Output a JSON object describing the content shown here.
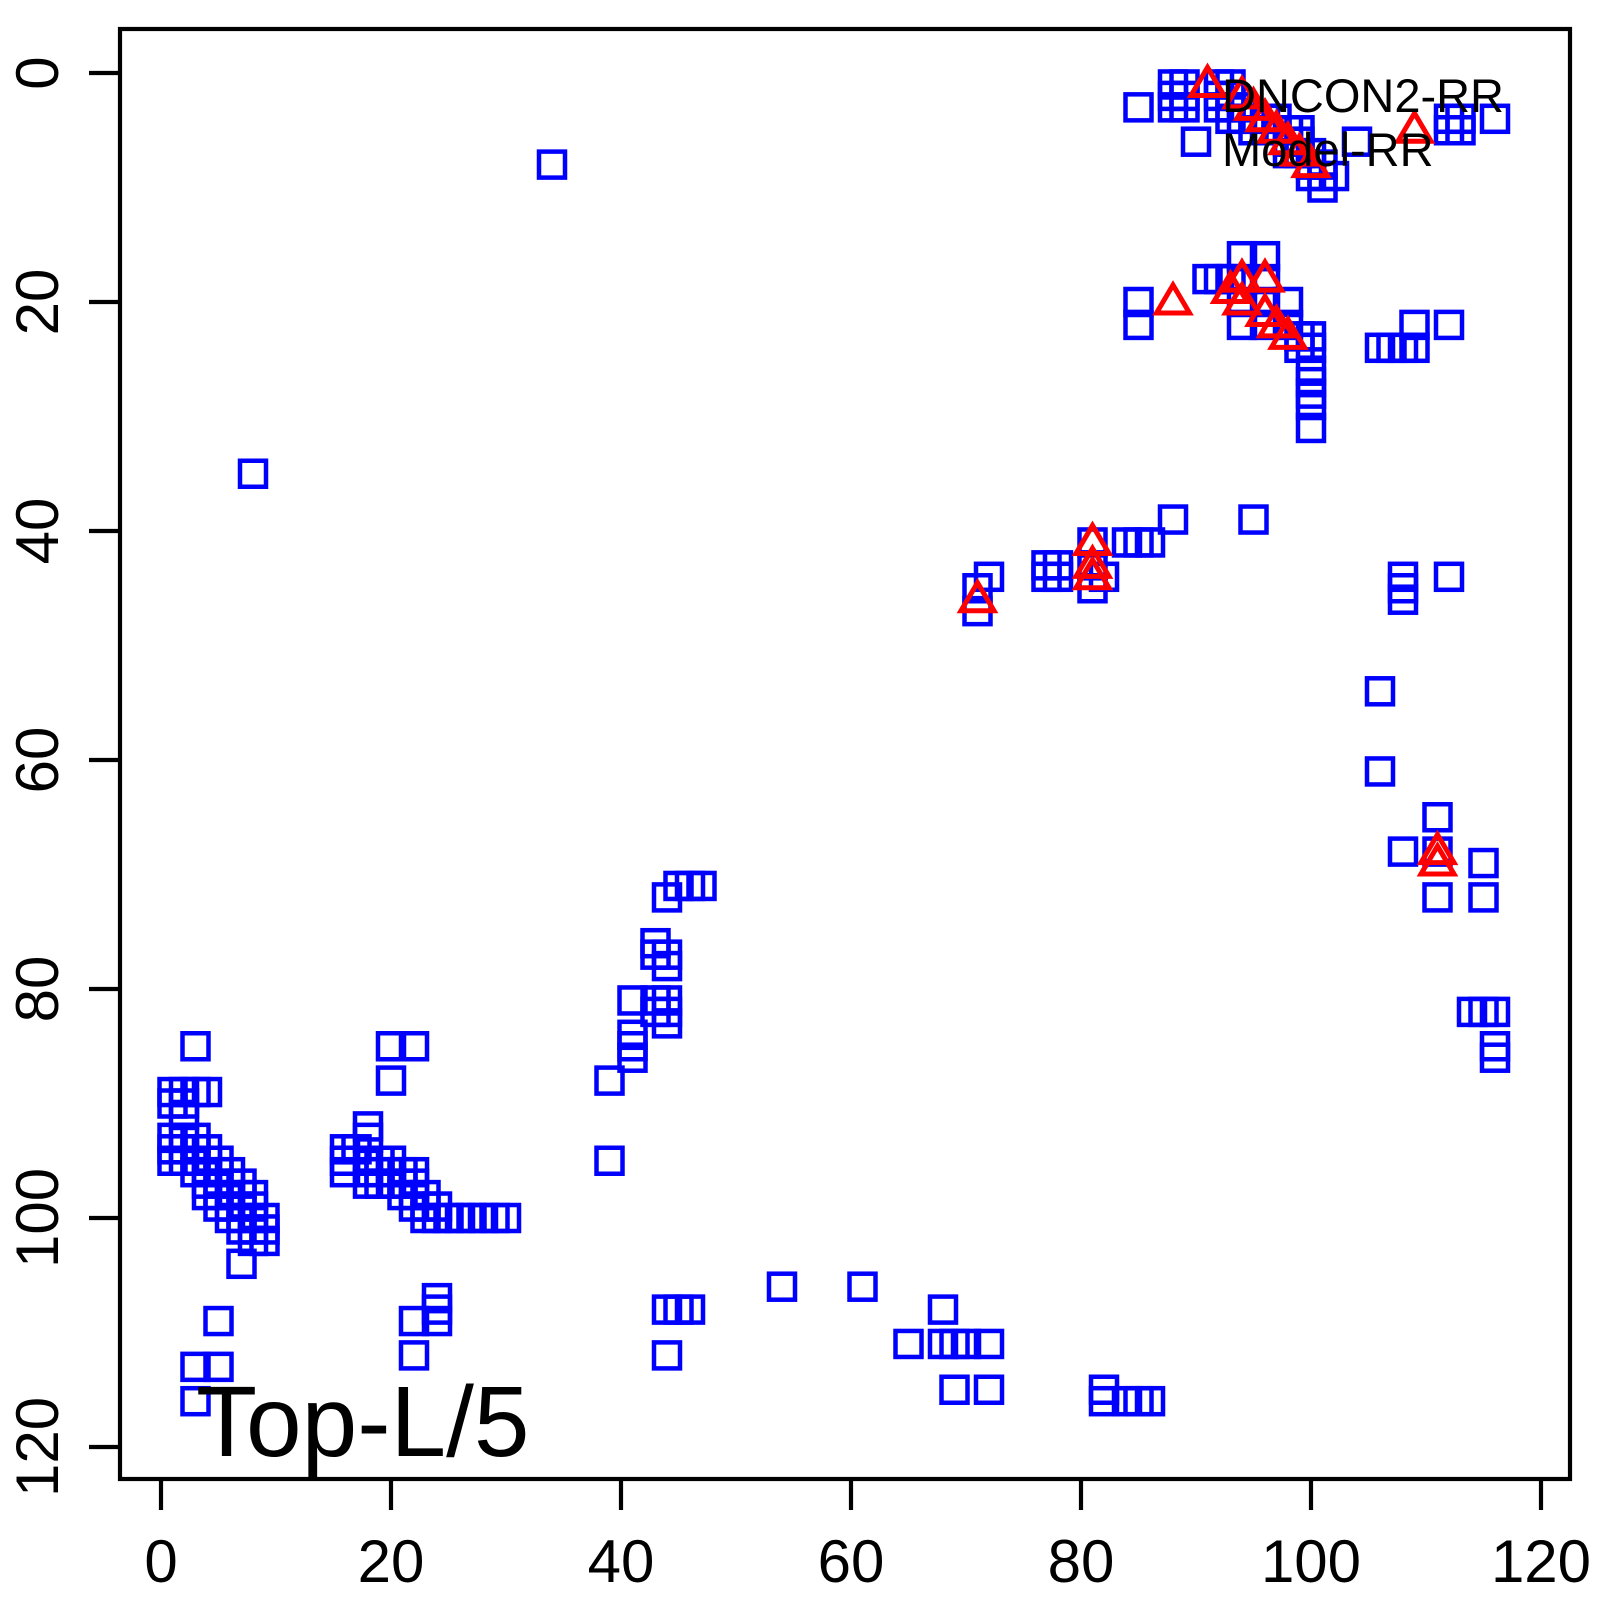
{
  "chart_data": {
    "type": "scatter",
    "title": "",
    "corner_label": "Top-L/5",
    "xlim": [
      -4,
      123
    ],
    "ylim_reversed": [
      123,
      -4
    ],
    "x_ticks": [
      0,
      20,
      40,
      60,
      80,
      100,
      120
    ],
    "y_ticks": [
      0,
      20,
      40,
      60,
      80,
      100,
      120
    ],
    "grid": false,
    "y_axis_inverted": true,
    "legend": {
      "position": "topright",
      "entries": [
        "DNCON2-RR",
        "Model-RR"
      ]
    },
    "colors": {
      "triangle_series": "#ff0000",
      "square_series": "#0000ff",
      "axis": "#000000"
    },
    "series": [
      {
        "name": "DNCON2-RR",
        "marker": "triangle",
        "color": "#ff0000",
        "points": [
          [
            91,
            1
          ],
          [
            94,
            2
          ],
          [
            95,
            3
          ],
          [
            96,
            4
          ],
          [
            97,
            5
          ],
          [
            98,
            6
          ],
          [
            99,
            7
          ],
          [
            100,
            8
          ],
          [
            109,
            5
          ],
          [
            88,
            20
          ],
          [
            94,
            18
          ],
          [
            96,
            18
          ],
          [
            93,
            19
          ],
          [
            94,
            20
          ],
          [
            96,
            21
          ],
          [
            97,
            22
          ],
          [
            98,
            23
          ],
          [
            81,
            41
          ],
          [
            81,
            43
          ],
          [
            81,
            44
          ],
          [
            71,
            46
          ],
          [
            111,
            68
          ],
          [
            111,
            69
          ]
        ]
      },
      {
        "name": "Model-RR",
        "marker": "square",
        "color": "#0000ff",
        "points": [
          [
            85,
            3
          ],
          [
            88,
            1
          ],
          [
            89,
            1
          ],
          [
            88,
            2
          ],
          [
            89,
            2
          ],
          [
            88,
            3
          ],
          [
            89,
            3
          ],
          [
            92,
            1
          ],
          [
            93,
            1
          ],
          [
            92,
            2
          ],
          [
            93,
            2
          ],
          [
            92,
            3
          ],
          [
            93,
            3
          ],
          [
            93,
            4
          ],
          [
            94,
            3
          ],
          [
            94,
            4
          ],
          [
            95,
            4
          ],
          [
            96,
            4
          ],
          [
            97,
            4
          ],
          [
            95,
            5
          ],
          [
            96,
            5
          ],
          [
            97,
            5
          ],
          [
            98,
            5
          ],
          [
            99,
            5
          ],
          [
            90,
            6
          ],
          [
            98,
            6
          ],
          [
            99,
            6
          ],
          [
            98,
            7
          ],
          [
            99,
            7
          ],
          [
            100,
            7
          ],
          [
            100,
            8
          ],
          [
            101,
            8
          ],
          [
            100,
            9
          ],
          [
            101,
            9
          ],
          [
            102,
            9
          ],
          [
            101,
            10
          ],
          [
            104,
            6
          ],
          [
            112,
            4
          ],
          [
            113,
            4
          ],
          [
            112,
            5
          ],
          [
            113,
            5
          ],
          [
            116,
            4
          ],
          [
            34,
            8
          ],
          [
            94,
            16
          ],
          [
            96,
            16
          ],
          [
            85,
            20
          ],
          [
            85,
            22
          ],
          [
            91,
            18
          ],
          [
            92,
            18
          ],
          [
            93,
            18
          ],
          [
            94,
            18
          ],
          [
            96,
            18
          ],
          [
            94,
            20
          ],
          [
            96,
            20
          ],
          [
            98,
            20
          ],
          [
            94,
            22
          ],
          [
            96,
            22
          ],
          [
            98,
            22
          ],
          [
            99,
            23
          ],
          [
            100,
            23
          ],
          [
            99,
            24
          ],
          [
            100,
            24
          ],
          [
            100,
            26
          ],
          [
            100,
            27
          ],
          [
            100,
            28
          ],
          [
            100,
            29
          ],
          [
            100,
            31
          ],
          [
            106,
            24
          ],
          [
            107,
            24
          ],
          [
            108,
            24
          ],
          [
            109,
            24
          ],
          [
            109,
            22
          ],
          [
            112,
            22
          ],
          [
            8,
            35
          ],
          [
            71,
            45
          ],
          [
            71,
            47
          ],
          [
            72,
            44
          ],
          [
            77,
            43
          ],
          [
            78,
            43
          ],
          [
            77,
            44
          ],
          [
            78,
            44
          ],
          [
            81,
            41
          ],
          [
            81,
            43
          ],
          [
            81,
            45
          ],
          [
            82,
            44
          ],
          [
            84,
            41
          ],
          [
            85,
            41
          ],
          [
            86,
            41
          ],
          [
            88,
            39
          ],
          [
            95,
            39
          ],
          [
            108,
            44
          ],
          [
            108,
            45
          ],
          [
            108,
            46
          ],
          [
            112,
            44
          ],
          [
            106,
            54
          ],
          [
            106,
            61
          ],
          [
            111,
            65
          ],
          [
            108,
            68
          ],
          [
            111,
            68
          ],
          [
            115,
            69
          ],
          [
            111,
            72
          ],
          [
            115,
            72
          ],
          [
            114,
            82
          ],
          [
            115,
            82
          ],
          [
            116,
            82
          ],
          [
            116,
            85
          ],
          [
            116,
            86
          ],
          [
            44,
            72
          ],
          [
            45,
            71
          ],
          [
            46,
            71
          ],
          [
            47,
            71
          ],
          [
            43,
            76
          ],
          [
            43,
            77
          ],
          [
            44,
            77
          ],
          [
            44,
            78
          ],
          [
            41,
            81
          ],
          [
            43,
            81
          ],
          [
            44,
            81
          ],
          [
            43,
            82
          ],
          [
            44,
            82
          ],
          [
            44,
            83
          ],
          [
            41,
            84
          ],
          [
            41,
            85
          ],
          [
            41,
            86
          ],
          [
            39,
            88
          ],
          [
            39,
            95
          ],
          [
            3,
            85
          ],
          [
            1,
            89
          ],
          [
            2,
            89
          ],
          [
            3,
            89
          ],
          [
            4,
            89
          ],
          [
            1,
            90
          ],
          [
            2,
            90
          ],
          [
            2,
            91
          ],
          [
            1,
            93
          ],
          [
            2,
            93
          ],
          [
            3,
            93
          ],
          [
            1,
            94
          ],
          [
            2,
            94
          ],
          [
            3,
            94
          ],
          [
            4,
            94
          ],
          [
            1,
            95
          ],
          [
            2,
            95
          ],
          [
            3,
            95
          ],
          [
            4,
            95
          ],
          [
            5,
            95
          ],
          [
            3,
            96
          ],
          [
            4,
            96
          ],
          [
            5,
            96
          ],
          [
            6,
            96
          ],
          [
            4,
            97
          ],
          [
            5,
            97
          ],
          [
            6,
            97
          ],
          [
            7,
            97
          ],
          [
            4,
            98
          ],
          [
            5,
            98
          ],
          [
            6,
            98
          ],
          [
            7,
            98
          ],
          [
            8,
            98
          ],
          [
            5,
            99
          ],
          [
            6,
            99
          ],
          [
            7,
            99
          ],
          [
            8,
            99
          ],
          [
            6,
            100
          ],
          [
            7,
            100
          ],
          [
            8,
            100
          ],
          [
            9,
            100
          ],
          [
            7,
            101
          ],
          [
            8,
            101
          ],
          [
            9,
            101
          ],
          [
            8,
            102
          ],
          [
            9,
            102
          ],
          [
            7,
            104
          ],
          [
            5,
            109
          ],
          [
            3,
            113
          ],
          [
            5,
            113
          ],
          [
            3,
            116
          ],
          [
            20,
            85
          ],
          [
            22,
            85
          ],
          [
            20,
            88
          ],
          [
            18,
            92
          ],
          [
            18,
            93
          ],
          [
            16,
            94
          ],
          [
            17,
            94
          ],
          [
            16,
            95
          ],
          [
            18,
            95
          ],
          [
            19,
            95
          ],
          [
            20,
            95
          ],
          [
            16,
            96
          ],
          [
            18,
            96
          ],
          [
            19,
            96
          ],
          [
            20,
            96
          ],
          [
            21,
            96
          ],
          [
            22,
            96
          ],
          [
            18,
            97
          ],
          [
            19,
            97
          ],
          [
            20,
            97
          ],
          [
            21,
            97
          ],
          [
            22,
            97
          ],
          [
            21,
            98
          ],
          [
            22,
            98
          ],
          [
            23,
            98
          ],
          [
            22,
            99
          ],
          [
            23,
            99
          ],
          [
            24,
            99
          ],
          [
            23,
            100
          ],
          [
            24,
            100
          ],
          [
            25,
            100
          ],
          [
            26,
            100
          ],
          [
            27,
            100
          ],
          [
            28,
            100
          ],
          [
            29,
            100
          ],
          [
            30,
            100
          ],
          [
            24,
            107
          ],
          [
            24,
            108
          ],
          [
            22,
            109
          ],
          [
            24,
            109
          ],
          [
            22,
            112
          ],
          [
            44,
            108
          ],
          [
            45,
            108
          ],
          [
            46,
            108
          ],
          [
            44,
            112
          ],
          [
            54,
            106
          ],
          [
            61,
            106
          ],
          [
            68,
            108
          ],
          [
            65,
            111
          ],
          [
            68,
            111
          ],
          [
            69,
            111
          ],
          [
            70,
            111
          ],
          [
            72,
            111
          ],
          [
            69,
            115
          ],
          [
            72,
            115
          ],
          [
            82,
            115
          ],
          [
            82,
            116
          ],
          [
            84,
            116
          ],
          [
            85,
            116
          ],
          [
            86,
            116
          ]
        ]
      }
    ]
  }
}
